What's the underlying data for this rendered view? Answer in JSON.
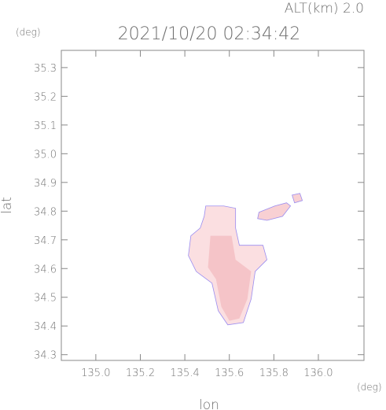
{
  "chart_data": {
    "type": "area-map",
    "title": "2021/10/20 02:34:42",
    "altitude_label": "ALT(km) 2.0",
    "x_label": "lon",
    "y_label": "lat",
    "x_unit": "(deg)",
    "y_unit": "(deg)",
    "xlim": [
      134.845,
      136.205
    ],
    "ylim": [
      34.28,
      35.36
    ],
    "xticks": [
      {
        "value": 135.0,
        "label": "135.0"
      },
      135.2,
      135.4,
      135.6,
      135.8,
      {
        "value": 136.0,
        "label": "136.0"
      }
    ],
    "yticks": [
      35.3,
      35.2,
      35.1,
      {
        "value": 35.0,
        "label": "35.0"
      },
      34.9,
      34.8,
      34.7,
      34.6,
      34.5,
      34.4,
      34.3
    ],
    "areas": [
      {
        "color": "#fbdfe1",
        "x": [
          135.494,
          135.575,
          135.628,
          135.628,
          135.645,
          135.751,
          135.769,
          135.716,
          135.698,
          135.663,
          135.593,
          135.55,
          135.522,
          135.451,
          135.416,
          135.427,
          135.469,
          135.487
        ],
        "y": [
          34.818,
          34.818,
          34.81,
          34.741,
          34.681,
          34.681,
          34.631,
          34.59,
          34.494,
          34.412,
          34.404,
          34.453,
          34.549,
          34.59,
          34.645,
          34.714,
          34.741,
          34.782
        ]
      },
      {
        "color": "#f5c4c8",
        "x": [
          135.515,
          135.61,
          135.628,
          135.698,
          135.681,
          135.645,
          135.6,
          135.564,
          135.54,
          135.504
        ],
        "y": [
          34.714,
          34.714,
          34.631,
          34.59,
          34.494,
          34.426,
          34.418,
          34.467,
          34.563,
          34.604
        ]
      },
      {
        "color": "#f8d0d3",
        "x": [
          135.733,
          135.804,
          135.857,
          135.875,
          135.839,
          135.769,
          135.727
        ],
        "y": [
          34.796,
          34.818,
          34.829,
          34.818,
          34.782,
          34.768,
          34.774
        ]
      },
      {
        "color": "#f8d0d3",
        "x": [
          135.882,
          135.917,
          135.928,
          135.893
        ],
        "y": [
          34.856,
          34.862,
          34.837,
          34.829
        ]
      }
    ]
  }
}
